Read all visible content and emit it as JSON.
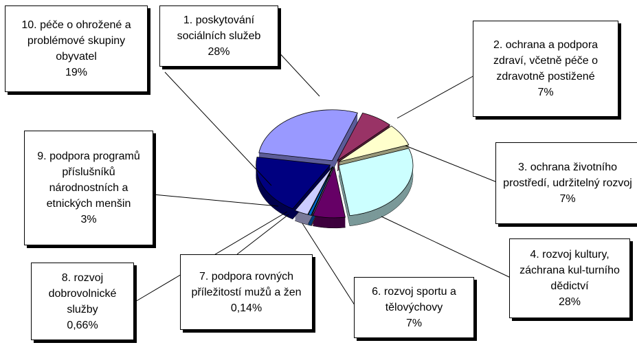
{
  "chart_data": {
    "type": "pie",
    "categories": [
      "1. poskytování sociálních služeb",
      "2. ochrana a podpora zdraví, včetně péče o zdravotně postižené",
      "3. ochrana životního prostředí, udržitelný rozvoj",
      "4. rozvoj kultury, záchrana kul-turního dědictví",
      "6. rozvoj sportu a tělovýchovy",
      "7. podpora rovných příležitostí mužů a žen",
      "8. rozvoj dobrovolnické služby",
      "9. podpora programů příslušníků národnostních a etnických menšin",
      "10. péče o ohrožené a problémové skupiny obyvatel"
    ],
    "values": [
      28,
      7,
      7,
      28,
      7,
      0.14,
      0.66,
      3,
      19
    ],
    "value_labels": [
      "28%",
      "7%",
      "7%",
      "28%",
      "7%",
      "0,14%",
      "0,66%",
      "3%",
      "19%"
    ],
    "colors": [
      "#9999ff",
      "#993366",
      "#ffffcc",
      "#ccffff",
      "#660066",
      "#ff8080",
      "#0066cc",
      "#ccccff",
      "#000080"
    ]
  }
}
